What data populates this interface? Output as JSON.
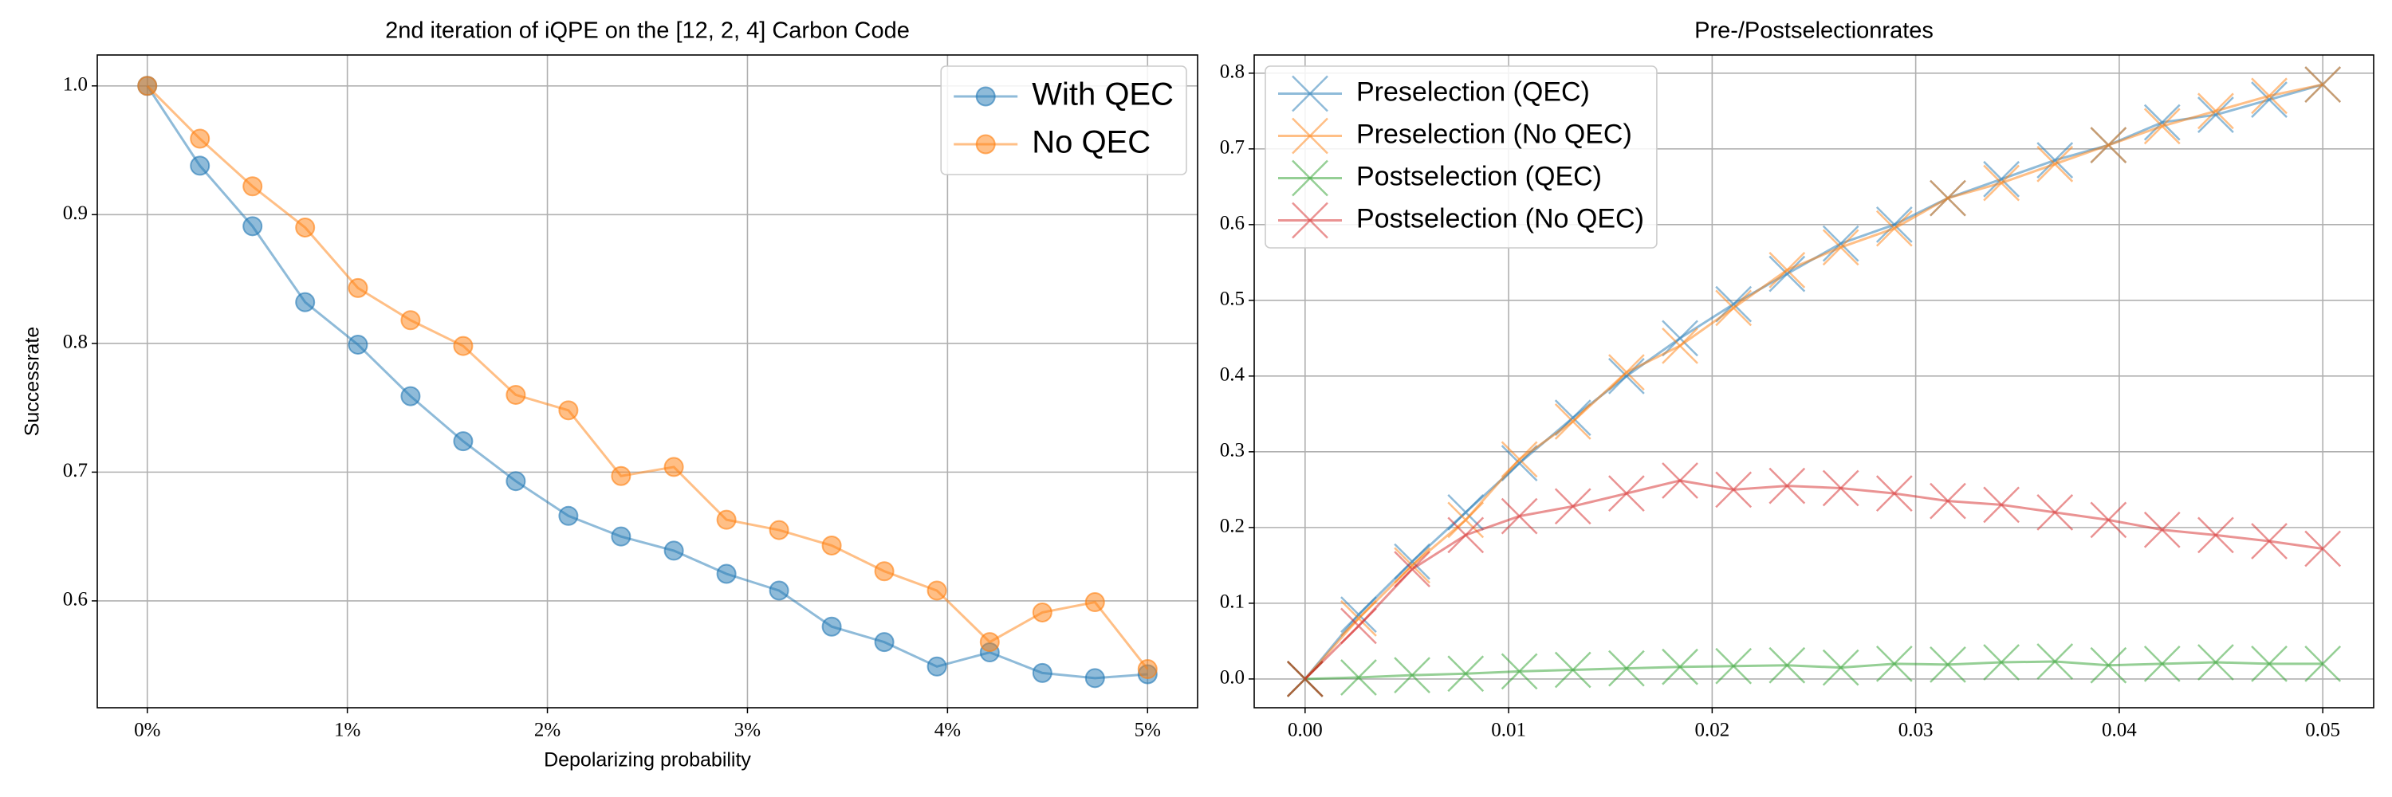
{
  "chart_data": [
    {
      "type": "line",
      "title": "2nd iteration of iQPE on the [12, 2, 4] Carbon Code",
      "xlabel": "Depolarizing probability",
      "ylabel": "Successrate",
      "marker": "circle",
      "legend": "upper right",
      "grid": true,
      "x": [
        0,
        0.263,
        0.526,
        0.789,
        1.053,
        1.316,
        1.579,
        1.842,
        2.105,
        2.368,
        2.632,
        2.895,
        3.158,
        3.421,
        3.684,
        3.947,
        4.211,
        4.474,
        4.737,
        5.0
      ],
      "xlim": [
        -0.25,
        5.25
      ],
      "xticks": [
        {
          "value": 0,
          "label": "0%"
        },
        {
          "value": 1,
          "label": "1%"
        },
        {
          "value": 2,
          "label": "2%"
        },
        {
          "value": 3,
          "label": "3%"
        },
        {
          "value": 4,
          "label": "4%"
        },
        {
          "value": 5,
          "label": "5%"
        }
      ],
      "ylim": [
        0.517,
        1.024
      ],
      "yticks": [
        0.6,
        0.7,
        0.8,
        0.9,
        {
          "value": 1,
          "label": "1.0"
        }
      ],
      "series": [
        {
          "name": "With QEC",
          "color": "#1f77b4",
          "values": [
            1.0,
            0.938,
            0.891,
            0.832,
            0.799,
            0.759,
            0.724,
            0.693,
            0.666,
            0.65,
            0.639,
            0.621,
            0.608,
            0.58,
            0.568,
            0.549,
            0.56,
            0.544,
            0.54,
            0.543
          ]
        },
        {
          "name": "No QEC",
          "color": "#ff7f0e",
          "values": [
            1.0,
            0.959,
            0.922,
            0.89,
            0.843,
            0.818,
            0.798,
            0.76,
            0.748,
            0.697,
            0.704,
            0.663,
            0.655,
            0.643,
            0.623,
            0.608,
            0.568,
            0.591,
            0.599,
            0.547
          ]
        }
      ]
    },
    {
      "type": "line",
      "title": "Pre-/Postselectionrates",
      "marker": "cross",
      "legend": "upper left",
      "grid": true,
      "x": [
        0,
        0.00263,
        0.00526,
        0.00789,
        0.01053,
        0.01316,
        0.01579,
        0.01842,
        0.02105,
        0.02368,
        0.02632,
        0.02895,
        0.03158,
        0.03421,
        0.03684,
        0.03947,
        0.04211,
        0.04474,
        0.04737,
        0.05
      ],
      "xlim": [
        -0.0025,
        0.0525
      ],
      "xticks": [
        {
          "value": 0,
          "label": "0.00"
        },
        0.01,
        0.02,
        0.03,
        0.04,
        0.05
      ],
      "ylim": [
        -0.038,
        0.824
      ],
      "yticks": [
        {
          "value": 0,
          "label": "0.0"
        },
        0.1,
        0.2,
        0.3,
        0.4,
        0.5,
        0.6,
        0.7,
        0.8
      ],
      "series": [
        {
          "name": "Preselection (QEC)",
          "color": "#1f77b4",
          "values": [
            0,
            0.085,
            0.155,
            0.22,
            0.285,
            0.345,
            0.4,
            0.45,
            0.495,
            0.535,
            0.575,
            0.6,
            0.635,
            0.66,
            0.685,
            0.705,
            0.735,
            0.745,
            0.765,
            0.785
          ]
        },
        {
          "name": "Preselection (No QEC)",
          "color": "#ff7f0e",
          "values": [
            0,
            0.08,
            0.15,
            0.21,
            0.29,
            0.34,
            0.405,
            0.44,
            0.49,
            0.54,
            0.57,
            0.595,
            0.635,
            0.655,
            0.68,
            0.705,
            0.73,
            0.75,
            0.77,
            0.785
          ]
        },
        {
          "name": "Postselection (QEC)",
          "color": "#2ca02c",
          "values": [
            0,
            0.002,
            0.005,
            0.007,
            0.01,
            0.012,
            0.014,
            0.016,
            0.017,
            0.018,
            0.015,
            0.02,
            0.019,
            0.022,
            0.023,
            0.018,
            0.02,
            0.022,
            0.02,
            0.02
          ]
        },
        {
          "name": "Postselection (No QEC)",
          "color": "#d62728",
          "values": [
            0,
            0.07,
            0.145,
            0.19,
            0.215,
            0.228,
            0.245,
            0.262,
            0.25,
            0.255,
            0.252,
            0.245,
            0.235,
            0.23,
            0.22,
            0.21,
            0.197,
            0.19,
            0.182,
            0.172
          ]
        }
      ]
    }
  ]
}
